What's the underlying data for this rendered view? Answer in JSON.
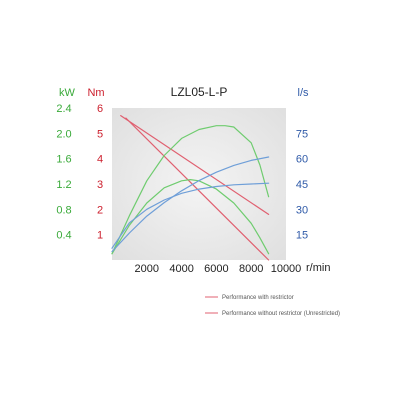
{
  "chart_data": {
    "type": "line",
    "title": "LZL05-L-P",
    "x_unit": "r/min",
    "xlim": [
      0,
      10000
    ],
    "x_ticks": [
      2000,
      4000,
      6000,
      8000,
      10000
    ],
    "colors": {
      "kw": "#3aaa3a",
      "nm": "#cc1e2c",
      "ls": "#2f5aa8",
      "torque_line": "#e06070",
      "power_line": "#6fcc6f",
      "flow_line": "#6f9fd8",
      "panel": "#e8e8e8"
    },
    "axes": {
      "kw": {
        "unit": "kW",
        "ylim": [
          0,
          2.4
        ],
        "ticks": [
          "0.4",
          "0.8",
          "1.2",
          "1.6",
          "2.0",
          "2.4"
        ]
      },
      "nm": {
        "unit": "Nm",
        "ylim": [
          0,
          6
        ],
        "ticks": [
          "1",
          "2",
          "3",
          "4",
          "5",
          "6"
        ]
      },
      "ls": {
        "unit": "l/s",
        "ylim": [
          0,
          90
        ],
        "ticks": [
          "15",
          "30",
          "45",
          "60",
          "75"
        ]
      }
    },
    "series": [
      {
        "axis": "nm",
        "color_key": "torque_line",
        "x": [
          800,
          9000
        ],
        "y": [
          5.6,
          0.0
        ]
      },
      {
        "axis": "nm",
        "color_key": "torque_line",
        "x": [
          500,
          9000
        ],
        "y": [
          5.7,
          1.8
        ]
      },
      {
        "axis": "kw",
        "color_key": "power_line",
        "x": [
          0,
          1000,
          2000,
          3000,
          4000,
          4500,
          5000,
          6000,
          7000,
          8000,
          8500,
          9000
        ],
        "y": [
          0.1,
          0.55,
          0.9,
          1.14,
          1.25,
          1.27,
          1.25,
          1.12,
          0.9,
          0.58,
          0.35,
          0.1
        ]
      },
      {
        "axis": "kw",
        "color_key": "power_line",
        "x": [
          0,
          1000,
          2000,
          3000,
          4000,
          5000,
          6000,
          6500,
          7000,
          8000,
          8500,
          9000
        ],
        "y": [
          0.1,
          0.7,
          1.25,
          1.65,
          1.92,
          2.06,
          2.12,
          2.12,
          2.1,
          1.85,
          1.5,
          1.0
        ]
      },
      {
        "axis": "ls",
        "color_key": "flow_line",
        "x": [
          0,
          1000,
          2000,
          3000,
          4000,
          5000,
          6000,
          7000,
          8000,
          9000
        ],
        "y": [
          7,
          22,
          30,
          35.5,
          39.5,
          42,
          43.5,
          44.5,
          45,
          45.5
        ]
      },
      {
        "axis": "ls",
        "color_key": "flow_line",
        "x": [
          0,
          1000,
          2000,
          3000,
          4000,
          5000,
          6000,
          7000,
          8000,
          9000
        ],
        "y": [
          5,
          16,
          26,
          34,
          41,
          47,
          52,
          56,
          59,
          61
        ]
      }
    ],
    "legend": {
      "placement": "bottom-right",
      "entries": [
        {
          "label": "Performance with restrictor",
          "color_key": "torque_line"
        },
        {
          "label": "Performance without restrictor (Unrestricted)",
          "color_key": "torque_line"
        }
      ]
    }
  }
}
